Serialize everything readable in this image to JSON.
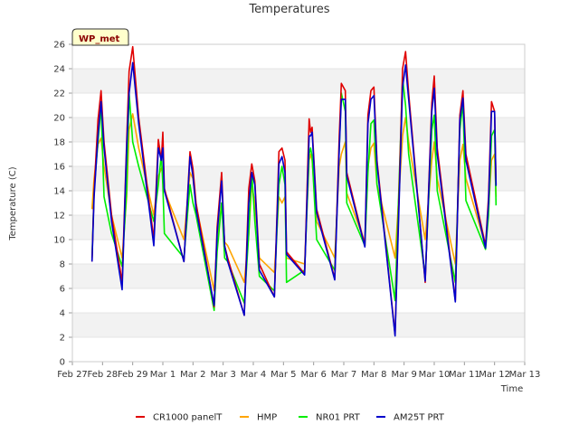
{
  "chart_data": {
    "type": "line",
    "title": "Temperatures",
    "xlabel": "Time",
    "ylabel": "Temperature (C)",
    "ylim": [
      0,
      26
    ],
    "yticks": [
      0,
      2,
      4,
      6,
      8,
      10,
      12,
      14,
      16,
      18,
      20,
      22,
      24,
      26
    ],
    "xlim": [
      0,
      15
    ],
    "xticks": [
      {
        "x": 0,
        "label": "Feb 27"
      },
      {
        "x": 1,
        "label": "Feb 28"
      },
      {
        "x": 2,
        "label": "Feb 29"
      },
      {
        "x": 3,
        "label": "Mar 1"
      },
      {
        "x": 4,
        "label": "Mar 2"
      },
      {
        "x": 5,
        "label": "Mar 3"
      },
      {
        "x": 6,
        "label": "Mar 4"
      },
      {
        "x": 7,
        "label": "Mar 5"
      },
      {
        "x": 8,
        "label": "Mar 6"
      },
      {
        "x": 9,
        "label": "Mar 7"
      },
      {
        "x": 10,
        "label": "Mar 8"
      },
      {
        "x": 11,
        "label": "Mar 9"
      },
      {
        "x": 12,
        "label": "Mar 10"
      },
      {
        "x": 13,
        "label": "Mar 11"
      },
      {
        "x": 14,
        "label": "Mar 12"
      },
      {
        "x": 15,
        "label": "Mar 13"
      }
    ],
    "grid": "horizontal bands",
    "legend_position": "bottom",
    "station_tag": "WP_met",
    "series": [
      {
        "name": "CR1000 panelT",
        "color": "#e00000",
        "points": [
          [
            0.65,
            8.2
          ],
          [
            0.72,
            14
          ],
          [
            0.85,
            19.8
          ],
          [
            0.95,
            22.2
          ],
          [
            1.05,
            18
          ],
          [
            1.3,
            12
          ],
          [
            1.65,
            6.5
          ],
          [
            1.8,
            18
          ],
          [
            1.88,
            23.8
          ],
          [
            2.0,
            25.8
          ],
          [
            2.2,
            20
          ],
          [
            2.7,
            10
          ],
          [
            2.85,
            18.2
          ],
          [
            2.95,
            16.5
          ],
          [
            3.0,
            18.8
          ],
          [
            3.05,
            14.2
          ],
          [
            3.7,
            8.2
          ],
          [
            3.9,
            17.2
          ],
          [
            4.0,
            15.8
          ],
          [
            4.1,
            13
          ],
          [
            4.7,
            4.5
          ],
          [
            4.8,
            11
          ],
          [
            4.95,
            15.5
          ],
          [
            5.05,
            9.5
          ],
          [
            5.15,
            8.5
          ],
          [
            5.7,
            3.8
          ],
          [
            5.85,
            14.2
          ],
          [
            5.95,
            16.2
          ],
          [
            6.05,
            14.8
          ],
          [
            6.2,
            8
          ],
          [
            6.7,
            5.3
          ],
          [
            6.85,
            17.2
          ],
          [
            6.95,
            17.5
          ],
          [
            7.05,
            16.5
          ],
          [
            7.1,
            9
          ],
          [
            7.7,
            7.2
          ],
          [
            7.85,
            19.9
          ],
          [
            7.9,
            18.8
          ],
          [
            7.95,
            19.2
          ],
          [
            8.1,
            12.5
          ],
          [
            8.7,
            6.8
          ],
          [
            8.85,
            18.5
          ],
          [
            8.92,
            22.8
          ],
          [
            9.05,
            22.2
          ],
          [
            9.1,
            15.5
          ],
          [
            9.7,
            9.5
          ],
          [
            9.8,
            20.2
          ],
          [
            9.9,
            22.2
          ],
          [
            10.0,
            22.5
          ],
          [
            10.1,
            16.5
          ],
          [
            10.7,
            2.2
          ],
          [
            10.95,
            24
          ],
          [
            11.05,
            25.4
          ],
          [
            11.15,
            22
          ],
          [
            11.7,
            6.5
          ],
          [
            11.92,
            21.2
          ],
          [
            12.0,
            23.4
          ],
          [
            12.1,
            17.5
          ],
          [
            12.7,
            5.0
          ],
          [
            12.85,
            20.2
          ],
          [
            12.95,
            22.2
          ],
          [
            13.05,
            17
          ],
          [
            13.7,
            9.5
          ],
          [
            13.8,
            13.5
          ],
          [
            13.9,
            21.3
          ],
          [
            14.0,
            20.5
          ],
          [
            14.05,
            14.5
          ]
        ]
      },
      {
        "name": "HMP",
        "color": "#ffa500",
        "points": [
          [
            0.65,
            12.5
          ],
          [
            0.72,
            15
          ],
          [
            0.85,
            17.8
          ],
          [
            0.95,
            18.3
          ],
          [
            1.05,
            16
          ],
          [
            1.3,
            12
          ],
          [
            1.65,
            8.5
          ],
          [
            1.8,
            13.5
          ],
          [
            1.88,
            19
          ],
          [
            2.0,
            20.3
          ],
          [
            2.2,
            17.5
          ],
          [
            2.7,
            12
          ],
          [
            2.85,
            15.2
          ],
          [
            2.95,
            15.8
          ],
          [
            3.0,
            16
          ],
          [
            3.05,
            14
          ],
          [
            3.7,
            10
          ],
          [
            3.9,
            15.5
          ],
          [
            4.0,
            15.0
          ],
          [
            4.1,
            12.8
          ],
          [
            4.7,
            5.8
          ],
          [
            4.8,
            10
          ],
          [
            4.95,
            13
          ],
          [
            5.05,
            9.8
          ],
          [
            5.15,
            9.5
          ],
          [
            5.7,
            6.5
          ],
          [
            5.85,
            10.5
          ],
          [
            5.95,
            14.5
          ],
          [
            6.05,
            13
          ],
          [
            6.2,
            8.5
          ],
          [
            6.7,
            7.3
          ],
          [
            6.85,
            13.5
          ],
          [
            6.95,
            13
          ],
          [
            7.05,
            13.5
          ],
          [
            7.1,
            8.5
          ],
          [
            7.7,
            8.0
          ],
          [
            7.85,
            16.5
          ],
          [
            7.9,
            17
          ],
          [
            7.95,
            16.5
          ],
          [
            8.1,
            11.5
          ],
          [
            8.7,
            8.5
          ],
          [
            8.85,
            16
          ],
          [
            8.92,
            17
          ],
          [
            9.05,
            18
          ],
          [
            9.1,
            13.8
          ],
          [
            9.7,
            9.8
          ],
          [
            9.8,
            16
          ],
          [
            9.9,
            17.5
          ],
          [
            10.0,
            17.9
          ],
          [
            10.1,
            14.5
          ],
          [
            10.7,
            8.5
          ],
          [
            10.95,
            18.5
          ],
          [
            11.05,
            20
          ],
          [
            11.15,
            18
          ],
          [
            11.7,
            10
          ],
          [
            11.92,
            16.5
          ],
          [
            12.0,
            18
          ],
          [
            12.1,
            15
          ],
          [
            12.7,
            8
          ],
          [
            12.85,
            16.5
          ],
          [
            12.95,
            17.8
          ],
          [
            13.05,
            15
          ],
          [
            13.7,
            9.5
          ],
          [
            13.8,
            12.5
          ],
          [
            13.9,
            16.5
          ],
          [
            14.0,
            17
          ],
          [
            14.05,
            13.5
          ]
        ]
      },
      {
        "name": "NR01 PRT",
        "color": "#00ee00",
        "points": [
          [
            0.65,
            8.5
          ],
          [
            0.72,
            14
          ],
          [
            0.85,
            18
          ],
          [
            0.95,
            21
          ],
          [
            1.05,
            13.5
          ],
          [
            1.3,
            10.5
          ],
          [
            1.65,
            7.8
          ],
          [
            1.8,
            14
          ],
          [
            1.88,
            22
          ],
          [
            2.0,
            18
          ],
          [
            2.2,
            16
          ],
          [
            2.7,
            11.5
          ],
          [
            2.85,
            14.5
          ],
          [
            2.95,
            17
          ],
          [
            3.0,
            14.5
          ],
          [
            3.05,
            10.5
          ],
          [
            3.7,
            8.5
          ],
          [
            3.9,
            14.5
          ],
          [
            4.0,
            13
          ],
          [
            4.1,
            12
          ],
          [
            4.7,
            4.2
          ],
          [
            4.8,
            9
          ],
          [
            4.95,
            13
          ],
          [
            5.05,
            8.5
          ],
          [
            5.15,
            8.2
          ],
          [
            5.7,
            4.8
          ],
          [
            5.85,
            10.5
          ],
          [
            5.95,
            15.5
          ],
          [
            6.05,
            11.5
          ],
          [
            6.2,
            7
          ],
          [
            6.7,
            5.8
          ],
          [
            6.85,
            14.5
          ],
          [
            6.95,
            16
          ],
          [
            7.05,
            14.5
          ],
          [
            7.1,
            6.5
          ],
          [
            7.7,
            7.5
          ],
          [
            7.85,
            17
          ],
          [
            7.9,
            17.5
          ],
          [
            7.95,
            16.8
          ],
          [
            8.1,
            10
          ],
          [
            8.7,
            7.5
          ],
          [
            8.85,
            17.5
          ],
          [
            8.92,
            22
          ],
          [
            9.05,
            20.5
          ],
          [
            9.1,
            13
          ],
          [
            9.7,
            9.5
          ],
          [
            9.8,
            15.5
          ],
          [
            9.9,
            19.5
          ],
          [
            10.0,
            19.8
          ],
          [
            10.1,
            14.5
          ],
          [
            10.7,
            5.0
          ],
          [
            10.95,
            23.2
          ],
          [
            11.05,
            21
          ],
          [
            11.15,
            17
          ],
          [
            11.7,
            7
          ],
          [
            11.92,
            19
          ],
          [
            12.0,
            20.2
          ],
          [
            12.1,
            14
          ],
          [
            12.7,
            6.5
          ],
          [
            12.85,
            19
          ],
          [
            12.95,
            21.2
          ],
          [
            13.05,
            13.2
          ],
          [
            13.7,
            9.2
          ],
          [
            13.8,
            12
          ],
          [
            13.9,
            18.5
          ],
          [
            14.0,
            19
          ],
          [
            14.05,
            12.8
          ]
        ]
      },
      {
        "name": "AM25T PRT",
        "color": "#0000cc",
        "points": [
          [
            0.65,
            8.2
          ],
          [
            0.72,
            13.5
          ],
          [
            0.85,
            18.5
          ],
          [
            0.95,
            21.3
          ],
          [
            1.05,
            17.5
          ],
          [
            1.3,
            11.5
          ],
          [
            1.65,
            5.9
          ],
          [
            1.8,
            17.5
          ],
          [
            1.88,
            22
          ],
          [
            2.0,
            24.5
          ],
          [
            2.2,
            19.5
          ],
          [
            2.7,
            9.5
          ],
          [
            2.85,
            17.5
          ],
          [
            2.95,
            16.5
          ],
          [
            3.0,
            17.5
          ],
          [
            3.05,
            14
          ],
          [
            3.7,
            8.2
          ],
          [
            3.9,
            16.8
          ],
          [
            4.0,
            15.2
          ],
          [
            4.1,
            12.5
          ],
          [
            4.7,
            4.6
          ],
          [
            4.8,
            10.5
          ],
          [
            4.95,
            14.8
          ],
          [
            5.05,
            9.5
          ],
          [
            5.15,
            8.2
          ],
          [
            5.7,
            3.8
          ],
          [
            5.85,
            13
          ],
          [
            5.95,
            15.5
          ],
          [
            6.05,
            14.5
          ],
          [
            6.2,
            7.5
          ],
          [
            6.7,
            5.3
          ],
          [
            6.85,
            16.2
          ],
          [
            6.95,
            16.8
          ],
          [
            7.05,
            15.5
          ],
          [
            7.1,
            8.8
          ],
          [
            7.7,
            7.1
          ],
          [
            7.85,
            18.5
          ],
          [
            7.9,
            18.5
          ],
          [
            7.95,
            18.8
          ],
          [
            8.1,
            12.2
          ],
          [
            8.7,
            6.7
          ],
          [
            8.85,
            17.5
          ],
          [
            8.92,
            21.5
          ],
          [
            9.05,
            21.5
          ],
          [
            9.1,
            15.2
          ],
          [
            9.7,
            9.4
          ],
          [
            9.8,
            19.5
          ],
          [
            9.9,
            21.5
          ],
          [
            10.0,
            21.8
          ],
          [
            10.1,
            16.2
          ],
          [
            10.7,
            2.1
          ],
          [
            10.95,
            22.5
          ],
          [
            11.05,
            24.3
          ],
          [
            11.15,
            21.5
          ],
          [
            11.7,
            6.6
          ],
          [
            11.92,
            20.5
          ],
          [
            12.0,
            22.4
          ],
          [
            12.1,
            17
          ],
          [
            12.7,
            4.9
          ],
          [
            12.85,
            19.8
          ],
          [
            12.95,
            21.6
          ],
          [
            13.05,
            16.5
          ],
          [
            13.7,
            9.3
          ],
          [
            13.8,
            13
          ],
          [
            13.9,
            20.5
          ],
          [
            14.0,
            20.5
          ],
          [
            14.05,
            14.4
          ]
        ]
      }
    ]
  }
}
